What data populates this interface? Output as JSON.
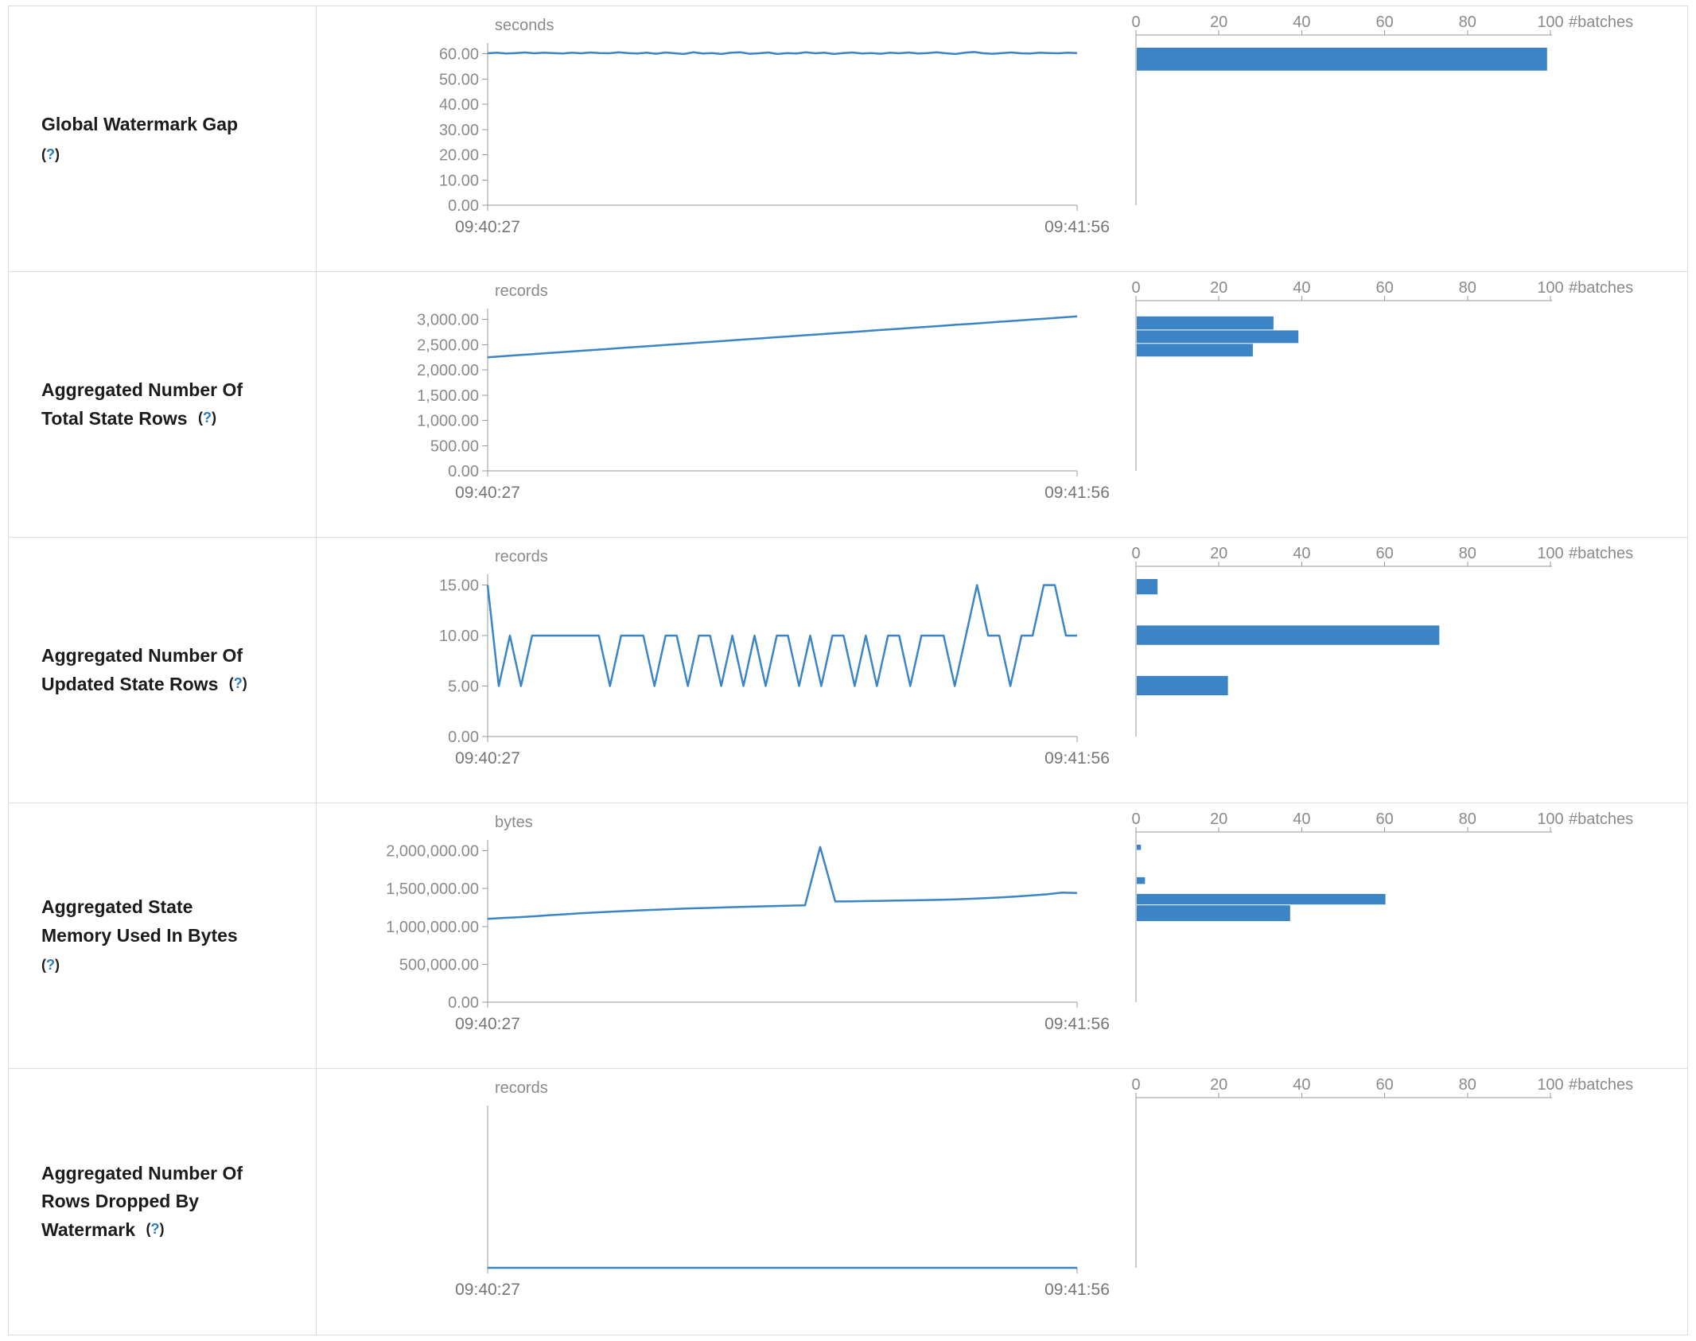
{
  "colors": {
    "accent": "#3b84c6",
    "axis": "#999999",
    "tick_text": "#8a8a8a",
    "label_text": "#1b1b1b",
    "help_link": "#2b7bb9",
    "border": "#dcdcdc"
  },
  "chart_data": {
    "type": "mixed",
    "description_types": [
      "line timeline per metric",
      "horizontal bar histogram per metric"
    ],
    "x_range_labels": [
      "09:40:27",
      "09:41:56"
    ],
    "help_open": "(",
    "help_symbol": "?",
    "help_close": ")",
    "histogram_axis": {
      "tick_values": [
        0,
        20,
        40,
        60,
        80,
        100
      ],
      "tick_labels": [
        "0",
        "20",
        "40",
        "60",
        "80",
        "100"
      ],
      "unit": "#batches",
      "max": 100
    },
    "metrics": [
      {
        "label_lines": [
          "Global Watermark Gap"
        ],
        "help_on_new_line": true,
        "timeline_type": "line",
        "histogram_type": "bar",
        "unit": "seconds",
        "ymax": 62.4,
        "ytick_values": [
          0,
          10,
          20,
          30,
          40,
          50,
          60
        ],
        "ytick_labels": [
          "0.00",
          "10.00",
          "20.00",
          "30.00",
          "40.00",
          "50.00",
          "60.00"
        ],
        "timeline_values": [
          60.2,
          60.4,
          60.1,
          60.3,
          60.5,
          60.2,
          60.4,
          60.3,
          60.1,
          60.4,
          60.2,
          60.5,
          60.3,
          60.2,
          60.6,
          60.3,
          60.1,
          60.4,
          60.0,
          60.5,
          60.2,
          59.9,
          60.6,
          60.1,
          60.3,
          59.9,
          60.4,
          60.6,
          60.0,
          60.2,
          60.5,
          59.9,
          60.3,
          60.1,
          60.6,
          60.2,
          60.4,
          59.9,
          60.3,
          60.5,
          60.1,
          60.3,
          60.0,
          60.4,
          60.2,
          60.5,
          60.1,
          60.3,
          60.6,
          60.2,
          59.9,
          60.4,
          60.7,
          60.2,
          60.0,
          60.3,
          60.5,
          60.2,
          60.1,
          60.4,
          60.3,
          60.2,
          60.4,
          60.3
        ],
        "histogram_bins": [
          {
            "lo": 53,
            "hi": 62.4,
            "count": 99
          }
        ]
      },
      {
        "label_lines": [
          "Aggregated Number Of",
          "Total State Rows"
        ],
        "help_on_new_line": false,
        "timeline_type": "line",
        "histogram_type": "bar",
        "unit": "records",
        "ymax": 3120,
        "ytick_values": [
          0,
          500,
          1000,
          1500,
          2000,
          2500,
          3000
        ],
        "ytick_labels": [
          "0.00",
          "500.00",
          "1,000.00",
          "1,500.00",
          "2,000.00",
          "2,500.00",
          "3,000.00"
        ],
        "timeline_values": [
          2250,
          2271,
          2292,
          2312,
          2333,
          2354,
          2375,
          2395,
          2416,
          2437,
          2458,
          2478,
          2499,
          2520,
          2541,
          2561,
          2582,
          2603,
          2624,
          2645,
          2665,
          2686,
          2707,
          2728,
          2748,
          2769,
          2790,
          2811,
          2831,
          2852,
          2873,
          2894,
          2914,
          2935,
          2956,
          2977,
          2998,
          3018,
          3039,
          3060
        ],
        "histogram_bins": [
          {
            "lo": 2783,
            "hi": 3060,
            "count": 33
          },
          {
            "lo": 2517,
            "hi": 2783,
            "count": 39
          },
          {
            "lo": 2250,
            "hi": 2517,
            "count": 28
          }
        ]
      },
      {
        "label_lines": [
          "Aggregated Number Of",
          "Updated State Rows"
        ],
        "help_on_new_line": false,
        "timeline_type": "line",
        "histogram_type": "bar",
        "unit": "records",
        "ymax": 15.6,
        "ytick_values": [
          0,
          5,
          10,
          15
        ],
        "ytick_labels": [
          "0.00",
          "5.00",
          "10.00",
          "15.00"
        ],
        "timeline_values": [
          15,
          5,
          10,
          5,
          10,
          10,
          10,
          10,
          10,
          10,
          10,
          5,
          10,
          10,
          10,
          5,
          10,
          10,
          5,
          10,
          10,
          5,
          10,
          5,
          10,
          5,
          10,
          10,
          5,
          10,
          5,
          10,
          10,
          5,
          10,
          5,
          10,
          10,
          5,
          10,
          10,
          10,
          5,
          10,
          15,
          10,
          10,
          5,
          10,
          10,
          15,
          15,
          10,
          10
        ],
        "histogram_bins": [
          {
            "lo": 14,
            "hi": 15.6,
            "count": 5
          },
          {
            "lo": 9,
            "hi": 11,
            "count": 73
          },
          {
            "lo": 4,
            "hi": 6,
            "count": 22
          }
        ]
      },
      {
        "label_lines": [
          "Aggregated State",
          "Memory Used In Bytes"
        ],
        "help_on_new_line": true,
        "timeline_type": "line",
        "histogram_type": "bar",
        "unit": "bytes",
        "ymax": 2080000,
        "ytick_values": [
          0,
          500000,
          1000000,
          1500000,
          2000000
        ],
        "ytick_labels": [
          "0.00",
          "500,000.00",
          "1,000,000.00",
          "1,500,000.00",
          "2,000,000.00"
        ],
        "timeline_values": [
          1100000,
          1112000,
          1121000,
          1134000,
          1148000,
          1160000,
          1172000,
          1183000,
          1193000,
          1203000,
          1212000,
          1220000,
          1228000,
          1235000,
          1242000,
          1248000,
          1254000,
          1260000,
          1265000,
          1270000,
          1275000,
          1280000,
          2050000,
          1330000,
          1332000,
          1335000,
          1338000,
          1341000,
          1345000,
          1349000,
          1353000,
          1358000,
          1366000,
          1375000,
          1385000,
          1396000,
          1410000,
          1425000,
          1448000,
          1442000
        ],
        "histogram_bins": [
          {
            "lo": 2000000,
            "hi": 2080000,
            "count": 1
          },
          {
            "lo": 1550000,
            "hi": 1650000,
            "count": 2
          },
          {
            "lo": 1280000,
            "hi": 1430000,
            "count": 60
          },
          {
            "lo": 1060000,
            "hi": 1280000,
            "count": 37
          }
        ]
      },
      {
        "label_lines": [
          "Aggregated Number Of",
          "Rows Dropped By",
          "Watermark"
        ],
        "help_on_new_line": false,
        "timeline_type": "line",
        "histogram_type": "bar",
        "unit": "records",
        "ymax": 1,
        "ytick_values": [],
        "ytick_labels": [],
        "timeline_values": [
          0,
          0,
          0,
          0,
          0,
          0,
          0,
          0,
          0,
          0
        ],
        "histogram_bins": []
      }
    ]
  }
}
